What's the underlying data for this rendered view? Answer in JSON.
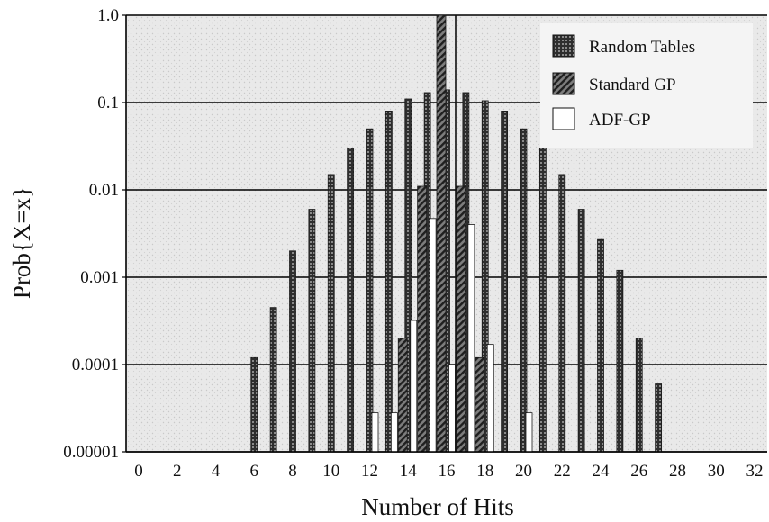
{
  "chart_data": {
    "type": "bar",
    "xlabel": "Number of Hits",
    "ylabel": "Prob{X=x}",
    "y_scale": "log",
    "ylim": [
      1e-05,
      1.0
    ],
    "xlim": [
      0,
      32
    ],
    "x_ticks": [
      "0",
      "2",
      "4",
      "6",
      "8",
      "10",
      "12",
      "14",
      "16",
      "18",
      "20",
      "22",
      "24",
      "26",
      "28",
      "30",
      "32"
    ],
    "y_ticks": [
      "0.00001",
      "0.0001",
      "0.001",
      "0.01",
      "0.1",
      "1.0"
    ],
    "grid": "horizontal",
    "legend_position": "top-right",
    "series": [
      {
        "name": "Random Tables",
        "x": [
          6,
          7,
          8,
          9,
          10,
          11,
          12,
          13,
          14,
          15,
          16,
          17,
          18,
          19,
          20,
          21,
          22,
          23,
          24,
          25,
          26,
          27
        ],
        "values": [
          0.00012,
          0.00045,
          0.002,
          0.006,
          0.015,
          0.03,
          0.05,
          0.08,
          0.11,
          0.13,
          0.14,
          0.13,
          0.105,
          0.08,
          0.05,
          0.03,
          0.015,
          0.006,
          0.0027,
          0.0012,
          0.0002,
          6e-05
        ]
      },
      {
        "name": "Standard GP",
        "x": [
          14,
          15,
          16,
          17,
          18
        ],
        "values": [
          0.0002,
          0.011,
          1.0,
          0.011,
          0.00012
        ]
      },
      {
        "name": "ADF-GP",
        "x": [
          12,
          13,
          14,
          15,
          16,
          17,
          18,
          20
        ],
        "values": [
          2.8e-05,
          2.8e-05,
          0.00032,
          0.0047,
          0.0001,
          0.004,
          0.00017,
          2.8e-05
        ]
      }
    ]
  },
  "legend": {
    "items": [
      {
        "label": "Random Tables",
        "style": "dense-dots"
      },
      {
        "label": "Standard GP",
        "style": "diagonal-hatch"
      },
      {
        "label": "ADF-GP",
        "style": "empty"
      }
    ]
  },
  "colors": {
    "plot_background": "#e6e6e6",
    "bar_dark": "#2a2a2a",
    "bar_pattern": "#6a6a6a",
    "gridline": "#000000",
    "adf_fill": "#ffffff"
  }
}
